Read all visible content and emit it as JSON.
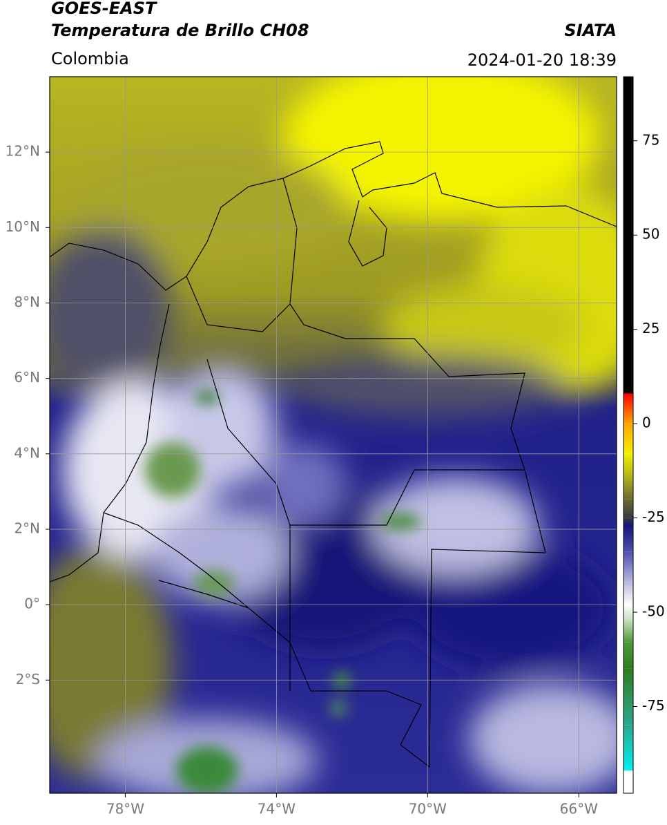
{
  "header": {
    "title": "GOES-EAST",
    "subtitle": "Temperatura de Brillo CH08",
    "source": "SIATA",
    "region": "Colombia",
    "datetime": "2024-01-20 18:39"
  },
  "map": {
    "xlim": [
      -80,
      -65
    ],
    "ylim": [
      -5,
      14
    ],
    "xticks": [
      {
        "value": -78,
        "label": "78°W"
      },
      {
        "value": -74,
        "label": "74°W"
      },
      {
        "value": -70,
        "label": "70°W"
      },
      {
        "value": -66,
        "label": "66°W"
      }
    ],
    "yticks": [
      {
        "value": 12,
        "label": "12°N"
      },
      {
        "value": 10,
        "label": "10°N"
      },
      {
        "value": 8,
        "label": "8°N"
      },
      {
        "value": 6,
        "label": "6°N"
      },
      {
        "value": 4,
        "label": "4°N"
      },
      {
        "value": 2,
        "label": "2°N"
      },
      {
        "value": 0,
        "label": "0°"
      },
      {
        "value": -2,
        "label": "2°S"
      }
    ],
    "grid": true
  },
  "colorbar": {
    "lim": [
      -98,
      92
    ],
    "ticks": [
      75,
      50,
      25,
      0,
      -25,
      -50,
      -75
    ],
    "colormap": [
      {
        "value": -98,
        "color": "#ffffff"
      },
      {
        "value": -92,
        "color": "#ffffff"
      },
      {
        "value": -92,
        "color": "#00f0f0"
      },
      {
        "value": -80,
        "color": "#2aa890"
      },
      {
        "value": -65,
        "color": "#2e7d1e"
      },
      {
        "value": -58,
        "color": "#4c9a3a"
      },
      {
        "value": -52,
        "color": "#c8e0c0"
      },
      {
        "value": -48,
        "color": "#ffffff"
      },
      {
        "value": -42,
        "color": "#b8b8e0"
      },
      {
        "value": -34,
        "color": "#5050b0"
      },
      {
        "value": -27,
        "color": "#14147a"
      },
      {
        "value": -25,
        "color": "#3a3a40"
      },
      {
        "value": -20,
        "color": "#6b6b30"
      },
      {
        "value": -15,
        "color": "#a8a820"
      },
      {
        "value": -8,
        "color": "#f0f000"
      },
      {
        "value": 0,
        "color": "#ffa500"
      },
      {
        "value": 8,
        "color": "#ff0000"
      },
      {
        "value": 8,
        "color": "#000000"
      },
      {
        "value": 92,
        "color": "#000000"
      }
    ]
  }
}
